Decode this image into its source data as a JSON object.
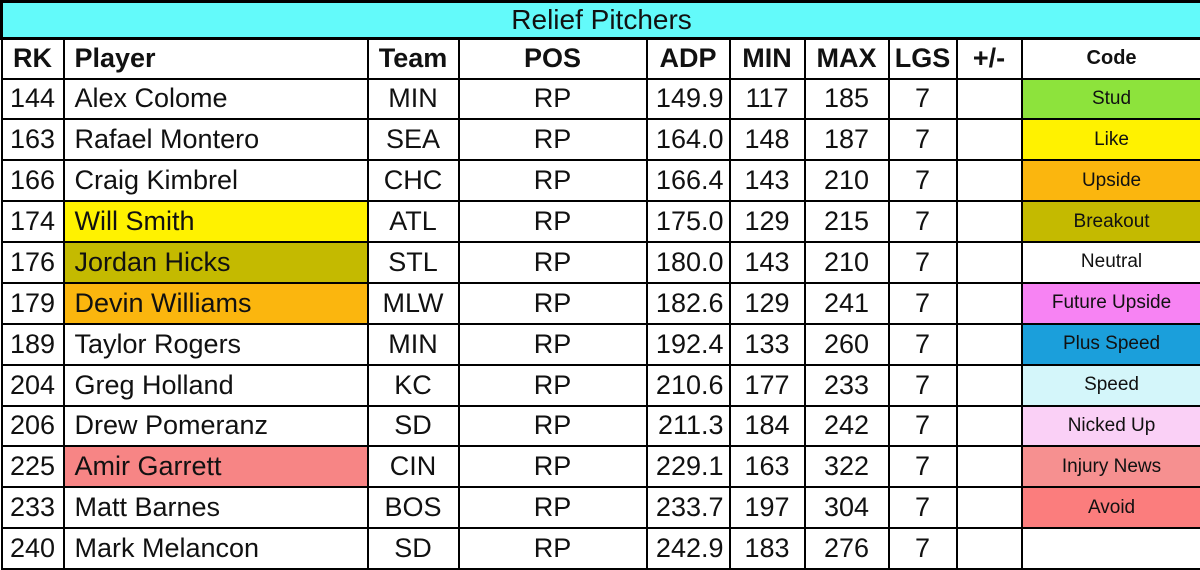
{
  "title": "Relief Pitchers",
  "colors": {
    "title_bg": "#63FAFA",
    "grid_border": "#000000",
    "stud": "#8DE33C",
    "like": "#FFF200",
    "upside": "#FBB60E",
    "breakout": "#C4BA00",
    "neutral": "#FFFFFF",
    "future_upside": "#F783F3",
    "plus_speed": "#1B9FDB",
    "speed": "#D4F6FA",
    "nicked_up": "#FAD0F6",
    "injury_news": "#F69090",
    "avoid": "#FB7D7D"
  },
  "columns": [
    {
      "key": "rk",
      "label": "RK"
    },
    {
      "key": "player",
      "label": "Player"
    },
    {
      "key": "team",
      "label": "Team"
    },
    {
      "key": "pos",
      "label": "POS"
    },
    {
      "key": "adp",
      "label": "ADP"
    },
    {
      "key": "min",
      "label": "MIN"
    },
    {
      "key": "max",
      "label": "MAX"
    },
    {
      "key": "lgs",
      "label": "LGS"
    },
    {
      "key": "plusminus",
      "label": "+/-"
    },
    {
      "key": "code",
      "label": "Code"
    }
  ],
  "rows": [
    {
      "rk": "144",
      "player": "Alex Colome",
      "team": "MIN",
      "pos": "RP",
      "adp": "149.9",
      "min": "117",
      "max": "185",
      "lgs": "7",
      "plusminus": "",
      "code": "Stud",
      "code_bg": "#8DE33C",
      "player_bg": ""
    },
    {
      "rk": "163",
      "player": "Rafael Montero",
      "team": "SEA",
      "pos": "RP",
      "adp": "164.0",
      "min": "148",
      "max": "187",
      "lgs": "7",
      "plusminus": "",
      "code": "Like",
      "code_bg": "#FFF200",
      "player_bg": ""
    },
    {
      "rk": "166",
      "player": "Craig Kimbrel",
      "team": "CHC",
      "pos": "RP",
      "adp": "166.4",
      "min": "143",
      "max": "210",
      "lgs": "7",
      "plusminus": "",
      "code": "Upside",
      "code_bg": "#FBB60E",
      "player_bg": ""
    },
    {
      "rk": "174",
      "player": "Will Smith",
      "team": "ATL",
      "pos": "RP",
      "adp": "175.0",
      "min": "129",
      "max": "215",
      "lgs": "7",
      "plusminus": "",
      "code": "Breakout",
      "code_bg": "#C4BA00",
      "player_bg": "#FFF200"
    },
    {
      "rk": "176",
      "player": "Jordan Hicks",
      "team": "STL",
      "pos": "RP",
      "adp": "180.0",
      "min": "143",
      "max": "210",
      "lgs": "7",
      "plusminus": "",
      "code": "Neutral",
      "code_bg": "#FFFFFF",
      "player_bg": "#C4BA00"
    },
    {
      "rk": "179",
      "player": "Devin Williams",
      "team": "MLW",
      "pos": "RP",
      "adp": "182.6",
      "min": "129",
      "max": "241",
      "lgs": "7",
      "plusminus": "",
      "code": "Future Upside",
      "code_bg": "#F783F3",
      "player_bg": "#FBB60E"
    },
    {
      "rk": "189",
      "player": "Taylor Rogers",
      "team": "MIN",
      "pos": "RP",
      "adp": "192.4",
      "min": "133",
      "max": "260",
      "lgs": "7",
      "plusminus": "",
      "code": "Plus Speed",
      "code_bg": "#1B9FDB",
      "player_bg": ""
    },
    {
      "rk": "204",
      "player": "Greg Holland",
      "team": "KC",
      "pos": "RP",
      "adp": "210.6",
      "min": "177",
      "max": "233",
      "lgs": "7",
      "plusminus": "",
      "code": "Speed",
      "code_bg": "#D4F6FA",
      "player_bg": ""
    },
    {
      "rk": "206",
      "player": "Drew Pomeranz",
      "team": "SD",
      "pos": "RP",
      "adp": "211.3",
      "min": "184",
      "max": "242",
      "lgs": "7",
      "plusminus": "",
      "code": "Nicked Up",
      "code_bg": "#FAD0F6",
      "player_bg": ""
    },
    {
      "rk": "225",
      "player": "Amir Garrett",
      "team": "CIN",
      "pos": "RP",
      "adp": "229.1",
      "min": "163",
      "max": "322",
      "lgs": "7",
      "plusminus": "",
      "code": "Injury News",
      "code_bg": "#F69090",
      "player_bg": "#F78585"
    },
    {
      "rk": "233",
      "player": "Matt Barnes",
      "team": "BOS",
      "pos": "RP",
      "adp": "233.7",
      "min": "197",
      "max": "304",
      "lgs": "7",
      "plusminus": "",
      "code": "Avoid",
      "code_bg": "#FB7D7D",
      "player_bg": ""
    },
    {
      "rk": "240",
      "player": "Mark Melancon",
      "team": "SD",
      "pos": "RP",
      "adp": "242.9",
      "min": "183",
      "max": "276",
      "lgs": "7",
      "plusminus": "",
      "code": "",
      "code_bg": "#FFFFFF",
      "player_bg": ""
    }
  ],
  "chart_data": {
    "type": "table",
    "title": "Relief Pitchers",
    "columns": [
      "RK",
      "Player",
      "Team",
      "POS",
      "ADP",
      "MIN",
      "MAX",
      "LGS",
      "+/-",
      "Code"
    ],
    "rows": [
      [
        144,
        "Alex Colome",
        "MIN",
        "RP",
        149.9,
        117,
        185,
        7,
        "",
        "Stud"
      ],
      [
        163,
        "Rafael Montero",
        "SEA",
        "RP",
        164.0,
        148,
        187,
        7,
        "",
        "Like"
      ],
      [
        166,
        "Craig Kimbrel",
        "CHC",
        "RP",
        166.4,
        143,
        210,
        7,
        "",
        "Upside"
      ],
      [
        174,
        "Will Smith",
        "ATL",
        "RP",
        175.0,
        129,
        215,
        7,
        "",
        "Breakout"
      ],
      [
        176,
        "Jordan Hicks",
        "STL",
        "RP",
        180.0,
        143,
        210,
        7,
        "",
        "Neutral"
      ],
      [
        179,
        "Devin Williams",
        "MLW",
        "RP",
        182.6,
        129,
        241,
        7,
        "",
        "Future Upside"
      ],
      [
        189,
        "Taylor Rogers",
        "MIN",
        "RP",
        192.4,
        133,
        260,
        7,
        "",
        "Plus Speed"
      ],
      [
        204,
        "Greg Holland",
        "KC",
        "RP",
        210.6,
        177,
        233,
        7,
        "",
        "Speed"
      ],
      [
        206,
        "Drew Pomeranz",
        "SD",
        "RP",
        211.3,
        184,
        242,
        7,
        "",
        "Nicked Up"
      ],
      [
        225,
        "Amir Garrett",
        "CIN",
        "RP",
        229.1,
        163,
        322,
        7,
        "",
        "Injury News"
      ],
      [
        233,
        "Matt Barnes",
        "BOS",
        "RP",
        233.7,
        197,
        304,
        7,
        "",
        "Avoid"
      ],
      [
        240,
        "Mark Melancon",
        "SD",
        "RP",
        242.9,
        183,
        276,
        7,
        "",
        ""
      ]
    ],
    "legend_codes": [
      {
        "label": "Stud",
        "color": "#8DE33C"
      },
      {
        "label": "Like",
        "color": "#FFF200"
      },
      {
        "label": "Upside",
        "color": "#FBB60E"
      },
      {
        "label": "Breakout",
        "color": "#C4BA00"
      },
      {
        "label": "Neutral",
        "color": "#FFFFFF"
      },
      {
        "label": "Future Upside",
        "color": "#F783F3"
      },
      {
        "label": "Plus Speed",
        "color": "#1B9FDB"
      },
      {
        "label": "Speed",
        "color": "#D4F6FA"
      },
      {
        "label": "Nicked Up",
        "color": "#FAD0F6"
      },
      {
        "label": "Injury News",
        "color": "#F69090"
      },
      {
        "label": "Avoid",
        "color": "#FB7D7D"
      }
    ]
  }
}
